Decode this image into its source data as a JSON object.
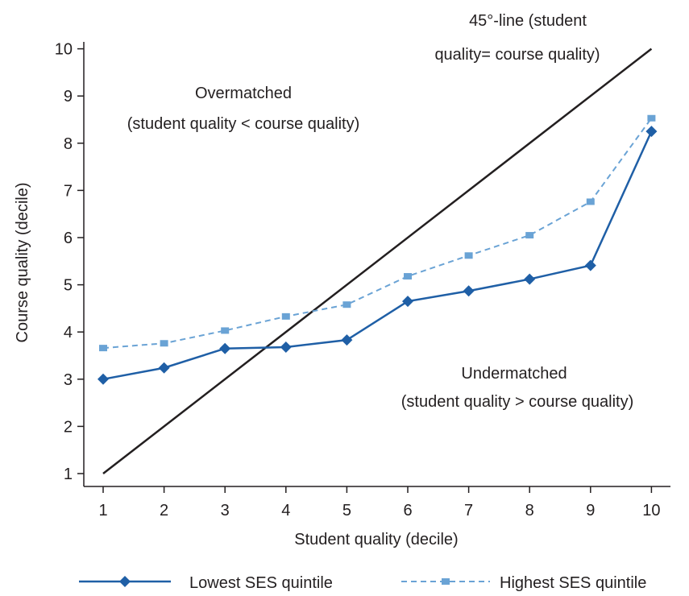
{
  "chart_data": {
    "type": "line",
    "xlabel": "Student quality (decile)",
    "ylabel": "Course quality (decile)",
    "x": [
      1,
      2,
      3,
      4,
      5,
      6,
      7,
      8,
      9,
      10
    ],
    "xlim": [
      1,
      10
    ],
    "ylim": [
      1,
      10
    ],
    "xticks": [
      "1",
      "2",
      "3",
      "4",
      "5",
      "6",
      "7",
      "8",
      "9",
      "10"
    ],
    "yticks": [
      "1",
      "2",
      "3",
      "4",
      "5",
      "6",
      "7",
      "8",
      "9",
      "10"
    ],
    "grid": false,
    "legend_position": "bottom",
    "series": [
      {
        "name": "Lowest SES quintile",
        "style": "solid",
        "marker": "diamond",
        "color": "#1f5fa6",
        "values": [
          3.0,
          3.24,
          3.65,
          3.68,
          3.83,
          4.65,
          4.87,
          5.12,
          5.41,
          8.25
        ]
      },
      {
        "name": "Highest SES quintile",
        "style": "dashed",
        "marker": "square",
        "color": "#6aa3d5",
        "values": [
          3.66,
          3.76,
          4.03,
          4.33,
          4.58,
          5.18,
          5.62,
          6.05,
          6.76,
          8.53
        ]
      }
    ],
    "reference_line": {
      "color": "#231f20",
      "x": [
        1,
        10
      ],
      "y": [
        1,
        10
      ]
    },
    "annotations": {
      "diagonal_line": [
        "45°-line (student",
        "quality= course quality)"
      ],
      "overmatched": [
        "Overmatched",
        "(student quality < course quality)"
      ],
      "undermatched": [
        "Undermatched",
        "(student quality > course quality)"
      ]
    }
  }
}
